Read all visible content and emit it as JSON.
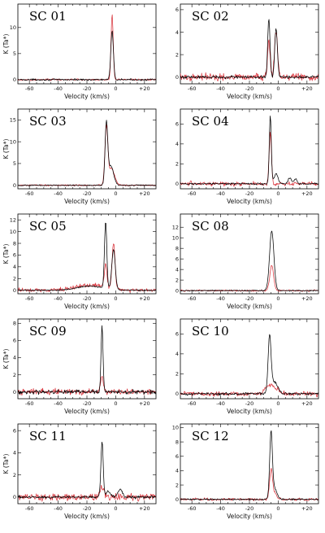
{
  "chart_data": [
    {
      "type": "line",
      "title": "SC 01",
      "xlabel": "Velocity (km/s)",
      "ylabel": "K (Ta*)",
      "xlim": [
        -68,
        28
      ],
      "ylim": [
        -0.8,
        14.5
      ],
      "x_ticks": [
        -60,
        -40,
        -20,
        0,
        20
      ],
      "x_tick_labels": [
        "-60",
        "-40",
        "-20",
        "0",
        "+20"
      ],
      "y_ticks": [
        0,
        5,
        10
      ],
      "y_tick_labels": [
        "0",
        "5",
        "10"
      ],
      "series": [
        {
          "color": "#000000",
          "peaks": [
            {
              "v": -2.5,
              "amp": 9.3,
              "w": 0.9
            }
          ],
          "noise": 0.15
        },
        {
          "color": "#d9363e",
          "peaks": [
            {
              "v": -2.5,
              "amp": 12.5,
              "w": 0.75
            }
          ],
          "noise": 0.15
        }
      ]
    },
    {
      "type": "line",
      "title": "SC 02",
      "xlabel": "Velocity (km/s)",
      "ylabel": "",
      "xlim": [
        -68,
        28
      ],
      "ylim": [
        -0.6,
        6.5
      ],
      "x_ticks": [
        -60,
        -40,
        -20,
        0,
        20
      ],
      "x_tick_labels": [
        "-60",
        "-40",
        "-20",
        "0",
        "+20"
      ],
      "y_ticks": [
        0,
        2,
        4,
        6
      ],
      "y_tick_labels": [
        "0",
        "2",
        "4",
        "6"
      ],
      "series": [
        {
          "color": "#000000",
          "peaks": [
            {
              "v": -6.5,
              "amp": 5.2,
              "w": 0.8
            },
            {
              "v": -1.5,
              "amp": 4.4,
              "w": 0.9
            }
          ],
          "noise": 0.12
        },
        {
          "color": "#d9363e",
          "peaks": [
            {
              "v": -6.5,
              "amp": 3.3,
              "w": 0.9
            },
            {
              "v": -1.5,
              "amp": 4.1,
              "w": 1.0
            }
          ],
          "noise": 0.3
        }
      ]
    },
    {
      "type": "line",
      "title": "SC 03",
      "xlabel": "Velocity (km/s)",
      "ylabel": "K (Ta*)",
      "xlim": [
        -68,
        28
      ],
      "ylim": [
        -0.8,
        17.5
      ],
      "x_ticks": [
        -60,
        -40,
        -20,
        0,
        20
      ],
      "x_tick_labels": [
        "-60",
        "-40",
        "-20",
        "0",
        "+20"
      ],
      "y_ticks": [
        0,
        5,
        10,
        15
      ],
      "y_tick_labels": [
        "0",
        "5",
        "10",
        "15"
      ],
      "series": [
        {
          "color": "#000000",
          "peaks": [
            {
              "v": -6.5,
              "amp": 13.5,
              "w": 0.9
            },
            {
              "v": -3.5,
              "amp": 4.5,
              "w": 2.0
            }
          ],
          "noise": 0.12
        },
        {
          "color": "#d9363e",
          "peaks": [
            {
              "v": -6.5,
              "amp": 12.8,
              "w": 1.0
            },
            {
              "v": -3.0,
              "amp": 3.8,
              "w": 2.2
            }
          ],
          "noise": 0.15
        }
      ]
    },
    {
      "type": "line",
      "title": "SC 04",
      "xlabel": "Velocity (km/s)",
      "ylabel": "",
      "xlim": [
        -68,
        28
      ],
      "ylim": [
        -0.5,
        7.5
      ],
      "x_ticks": [
        -60,
        -40,
        -20,
        0,
        20
      ],
      "x_tick_labels": [
        "-60",
        "-40",
        "-20",
        "0",
        "+20"
      ],
      "y_ticks": [
        0,
        2,
        4,
        6
      ],
      "y_tick_labels": [
        "0",
        "2",
        "4",
        "6"
      ],
      "series": [
        {
          "color": "#000000",
          "peaks": [
            {
              "v": -5.5,
              "amp": 6.8,
              "w": 0.7
            },
            {
              "v": -1.5,
              "amp": 1.0,
              "w": 1.4
            },
            {
              "v": 8,
              "amp": 0.6,
              "w": 1.2
            },
            {
              "v": 12,
              "amp": 0.5,
              "w": 1.0
            }
          ],
          "noise": 0.08
        },
        {
          "color": "#d9363e",
          "peaks": [
            {
              "v": -5.5,
              "amp": 5.2,
              "w": 0.8
            }
          ],
          "noise": 0.2
        }
      ]
    },
    {
      "type": "line",
      "title": "SC 05",
      "xlabel": "Velocity (km/s)",
      "ylabel": "K (Ta*)",
      "xlim": [
        -68,
        28
      ],
      "ylim": [
        -0.6,
        13
      ],
      "x_ticks": [
        -60,
        -40,
        -20,
        0,
        20
      ],
      "x_tick_labels": [
        "-60",
        "-40",
        "-20",
        "0",
        "+20"
      ],
      "y_ticks": [
        0,
        2,
        4,
        6,
        8,
        10,
        12
      ],
      "y_tick_labels": [
        "0",
        "2",
        "4",
        "6",
        "8",
        "10",
        "12"
      ],
      "series": [
        {
          "color": "#000000",
          "peaks": [
            {
              "v": -7,
              "amp": 11.5,
              "w": 0.8
            },
            {
              "v": -1.5,
              "amp": 6.8,
              "w": 1.2
            }
          ],
          "baseline": [
            {
              "v": -18,
              "amp": 0.7,
              "w": 9
            }
          ],
          "noise": 0.1
        },
        {
          "color": "#d9363e",
          "peaks": [
            {
              "v": -7,
              "amp": 4.0,
              "w": 0.9
            },
            {
              "v": -1.5,
              "amp": 8.0,
              "w": 1.0
            }
          ],
          "baseline": [
            {
              "v": -18,
              "amp": 0.9,
              "w": 10
            }
          ],
          "noise": 0.3
        }
      ]
    },
    {
      "type": "line",
      "title": "SC 08",
      "xlabel": "Velocity (km/s)",
      "ylabel": "",
      "xlim": [
        -68,
        28
      ],
      "ylim": [
        -0.6,
        14.5
      ],
      "x_ticks": [
        -60,
        -40,
        -20,
        0,
        20
      ],
      "x_tick_labels": [
        "-60",
        "-40",
        "-20",
        "0",
        "+20"
      ],
      "y_ticks": [
        0,
        2,
        4,
        6,
        8,
        10,
        12
      ],
      "y_tick_labels": [
        "0",
        "2",
        "4",
        "6",
        "8",
        "10",
        "12"
      ],
      "series": [
        {
          "color": "#000000",
          "peaks": [
            {
              "v": -4.5,
              "amp": 11.3,
              "w": 1.5
            }
          ],
          "noise": 0.1
        },
        {
          "color": "#d9363e",
          "peaks": [
            {
              "v": -4.5,
              "amp": 4.8,
              "w": 1.3
            }
          ],
          "noise": 0.15
        }
      ]
    },
    {
      "type": "line",
      "title": "SC 09",
      "xlabel": "Velocity (km/s)",
      "ylabel": "K (Ta*)",
      "xlim": [
        -68,
        28
      ],
      "ylim": [
        -0.8,
        8.5
      ],
      "x_ticks": [
        -60,
        -40,
        -20,
        0,
        20
      ],
      "x_tick_labels": [
        "-60",
        "-40",
        "-20",
        "0",
        "+20"
      ],
      "y_ticks": [
        0,
        2,
        4,
        6,
        8
      ],
      "y_tick_labels": [
        "0",
        "2",
        "4",
        "6",
        "8"
      ],
      "series": [
        {
          "color": "#000000",
          "peaks": [
            {
              "v": -9.5,
              "amp": 7.6,
              "w": 0.7
            }
          ],
          "noise": 0.2
        },
        {
          "color": "#d9363e",
          "peaks": [
            {
              "v": -9.5,
              "amp": 1.9,
              "w": 0.9
            }
          ],
          "noise": 0.3
        }
      ]
    },
    {
      "type": "line",
      "title": "SC 10",
      "xlabel": "Velocity (km/s)",
      "ylabel": "",
      "xlim": [
        -68,
        28
      ],
      "ylim": [
        -0.5,
        7.5
      ],
      "x_ticks": [
        -60,
        -40,
        -20,
        0,
        20
      ],
      "x_tick_labels": [
        "-60",
        "-40",
        "-20",
        "0",
        "+20"
      ],
      "y_ticks": [
        0,
        2,
        4,
        6
      ],
      "y_tick_labels": [
        "0",
        "2",
        "4",
        "6"
      ],
      "series": [
        {
          "color": "#000000",
          "peaks": [
            {
              "v": -6,
              "amp": 5.4,
              "w": 1.0
            },
            {
              "v": -3,
              "amp": 1.2,
              "w": 2.5
            }
          ],
          "noise": 0.12
        },
        {
          "color": "#d9363e",
          "peaks": [
            {
              "v": -5,
              "amp": 0.9,
              "w": 3.5
            }
          ],
          "noise": 0.22
        }
      ]
    },
    {
      "type": "line",
      "title": "SC 11",
      "xlabel": "Velocity (km/s)",
      "ylabel": "K (Ta*)",
      "xlim": [
        -68,
        28
      ],
      "ylim": [
        -0.6,
        6.6
      ],
      "x_ticks": [
        -60,
        -40,
        -20,
        0,
        20
      ],
      "x_tick_labels": [
        "-60",
        "-40",
        "-20",
        "0",
        "+20"
      ],
      "y_ticks": [
        0,
        2,
        4,
        6
      ],
      "y_tick_labels": [
        "0",
        "2",
        "4",
        "6"
      ],
      "series": [
        {
          "color": "#000000",
          "peaks": [
            {
              "v": -9.5,
              "amp": 5.0,
              "w": 0.8
            },
            {
              "v": -5,
              "amp": 0.5,
              "w": 1.5
            },
            {
              "v": 3,
              "amp": 0.7,
              "w": 1.5
            }
          ],
          "noise": 0.12
        },
        {
          "color": "#d9363e",
          "peaks": [
            {
              "v": -9.5,
              "amp": 0.8,
              "w": 1.5
            }
          ],
          "noise": 0.3
        }
      ]
    },
    {
      "type": "line",
      "title": "SC 12",
      "xlabel": "Velocity (km/s)",
      "ylabel": "",
      "xlim": [
        -68,
        28
      ],
      "ylim": [
        -0.6,
        10.5
      ],
      "x_ticks": [
        -60,
        -40,
        -20,
        0,
        20
      ],
      "x_tick_labels": [
        "-60",
        "-40",
        "-20",
        "0",
        "+20"
      ],
      "y_ticks": [
        0,
        2,
        4,
        6,
        8,
        10
      ],
      "y_tick_labels": [
        "0",
        "2",
        "4",
        "6",
        "8",
        "10"
      ],
      "series": [
        {
          "color": "#000000",
          "peaks": [
            {
              "v": -5,
              "amp": 8.8,
              "w": 0.9
            },
            {
              "v": -3,
              "amp": 1.6,
              "w": 2.0
            }
          ],
          "noise": 0.1
        },
        {
          "color": "#d9363e",
          "peaks": [
            {
              "v": -5,
              "amp": 3.8,
              "w": 1.0
            },
            {
              "v": -3,
              "amp": 0.8,
              "w": 2.0
            }
          ],
          "noise": 0.18
        }
      ]
    }
  ]
}
